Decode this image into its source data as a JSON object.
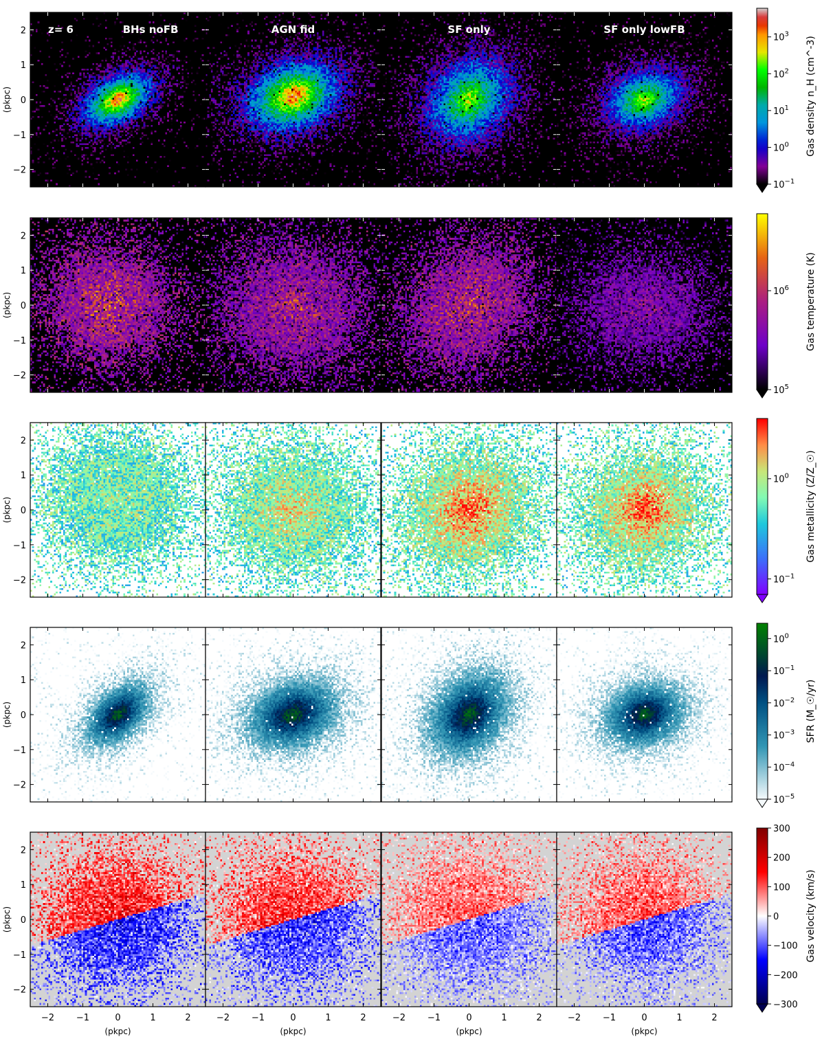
{
  "figure": {
    "redshift_label": "z= 6",
    "columns": [
      "BHs noFB",
      "AGN fid",
      "SF only",
      "SF only lowFB"
    ],
    "axis_label": "(pkpc)"
  },
  "chart_data": [
    {
      "type": "heatmap",
      "quantity": "gas_density",
      "colorbar_label": "Gas density n_H (cm^-3)",
      "colormap": "nipy_spectral",
      "background": "#000000",
      "scale": "log",
      "range": [
        0.1,
        6000
      ],
      "colorbar_ticks": [
        {
          "value": 0.1,
          "base": "10",
          "exp": "−1"
        },
        {
          "value": 1,
          "base": "10",
          "exp": "0"
        },
        {
          "value": 10,
          "base": "10",
          "exp": "1"
        },
        {
          "value": 100,
          "base": "10",
          "exp": "2"
        },
        {
          "value": 1000,
          "base": "10",
          "exp": "3"
        }
      ],
      "ylabel": "(pkpc)",
      "ylim": [
        -2.5,
        2.5
      ],
      "yticks": [
        -2,
        -1,
        0,
        1,
        2
      ],
      "panels": [
        {
          "column": "BHs noFB",
          "center": [
            0,
            0
          ],
          "radius": 1.5,
          "angle": 30,
          "aspect": 0.6,
          "peak": 3000,
          "noise": 0.45
        },
        {
          "column": "AGN fid",
          "center": [
            0,
            0.1
          ],
          "radius": 1.9,
          "angle": 20,
          "aspect": 0.7,
          "peak": 3000,
          "noise": 0.5
        },
        {
          "column": "SF only",
          "center": [
            0,
            0
          ],
          "radius": 1.9,
          "angle": 45,
          "aspect": 0.8,
          "peak": 300,
          "noise": 0.5
        },
        {
          "column": "SF only lowFB",
          "center": [
            0,
            0
          ],
          "radius": 1.6,
          "angle": 20,
          "aspect": 0.75,
          "peak": 300,
          "noise": 0.45
        }
      ]
    },
    {
      "type": "heatmap",
      "quantity": "gas_temperature",
      "colorbar_label": "Gas temperature (K)",
      "colormap": "gnuplot",
      "background": "#000000",
      "scale": "log",
      "range": [
        100000,
        6000000
      ],
      "colorbar_ticks": [
        {
          "value": 100000,
          "base": "10",
          "exp": "5"
        },
        {
          "value": 1000000,
          "base": "10",
          "exp": "6"
        }
      ],
      "ylabel": "(pkpc)",
      "ylim": [
        -2.5,
        2.5
      ],
      "yticks": [
        -2,
        -1,
        0,
        1,
        2
      ],
      "panels": [
        {
          "column": "BHs noFB",
          "center": [
            -0.3,
            0
          ],
          "radius": 1.8,
          "angle": 0,
          "aspect": 0.9,
          "peak": 1500000,
          "noise": 0.6
        },
        {
          "column": "AGN fid",
          "center": [
            0,
            -0.1
          ],
          "radius": 2.0,
          "angle": 0,
          "aspect": 0.9,
          "peak": 1000000,
          "noise": 0.6
        },
        {
          "column": "SF only",
          "center": [
            0,
            0
          ],
          "radius": 2.0,
          "angle": 45,
          "aspect": 0.8,
          "peak": 1200000,
          "noise": 0.6
        },
        {
          "column": "SF only lowFB",
          "center": [
            0,
            -0.1
          ],
          "radius": 1.8,
          "angle": 0,
          "aspect": 0.8,
          "peak": 500000,
          "noise": 0.55
        }
      ]
    },
    {
      "type": "heatmap",
      "quantity": "gas_metallicity",
      "colorbar_label": "Gas metallicity (Z/Z_☉)",
      "colormap": "rainbow",
      "background": "#ffffff",
      "scale": "log",
      "range": [
        0.07,
        4
      ],
      "colorbar_ticks": [
        {
          "value": 0.1,
          "base": "10",
          "exp": "−1"
        },
        {
          "value": 1,
          "base": "10",
          "exp": "0"
        }
      ],
      "ylabel": "(pkpc)",
      "ylim": [
        -2.5,
        2.5
      ],
      "yticks": [
        -2,
        -1,
        0,
        1,
        2
      ],
      "panels": [
        {
          "column": "BHs noFB",
          "center": [
            0,
            0.3
          ],
          "radius": 2.0,
          "angle": 0,
          "aspect": 0.9,
          "peak": 0.8,
          "noise": 0.5
        },
        {
          "column": "AGN fid",
          "center": [
            0,
            0
          ],
          "radius": 2.0,
          "angle": 0,
          "aspect": 0.9,
          "peak": 1.3,
          "noise": 0.5
        },
        {
          "column": "SF only",
          "center": [
            0,
            0
          ],
          "radius": 2.0,
          "angle": 30,
          "aspect": 0.9,
          "peak": 3.0,
          "noise": 0.5
        },
        {
          "column": "SF only lowFB",
          "center": [
            0,
            0
          ],
          "radius": 1.9,
          "angle": 20,
          "aspect": 0.9,
          "peak": 3.0,
          "noise": 0.5
        }
      ]
    },
    {
      "type": "heatmap",
      "quantity": "sfr",
      "colorbar_label": "SFR (M_☉/yr)",
      "colormap": "ocean_r",
      "background": "#ffffff",
      "scale": "log",
      "range": [
        1e-05,
        3
      ],
      "colorbar_ticks": [
        {
          "value": 1e-05,
          "base": "10",
          "exp": "−5"
        },
        {
          "value": 0.0001,
          "base": "10",
          "exp": "−4"
        },
        {
          "value": 0.001,
          "base": "10",
          "exp": "−3"
        },
        {
          "value": 0.01,
          "base": "10",
          "exp": "−2"
        },
        {
          "value": 0.1,
          "base": "10",
          "exp": "−1"
        },
        {
          "value": 1,
          "base": "10",
          "exp": "0"
        }
      ],
      "ylabel": "(pkpc)",
      "ylim": [
        -2.5,
        2.5
      ],
      "yticks": [
        -2,
        -1,
        0,
        1,
        2
      ],
      "panels": [
        {
          "column": "BHs noFB",
          "center": [
            0,
            0
          ],
          "radius": 1.5,
          "angle": 45,
          "aspect": 0.6,
          "peak": 1.0,
          "noise": 0.5
        },
        {
          "column": "AGN fid",
          "center": [
            0,
            0
          ],
          "radius": 1.8,
          "angle": 20,
          "aspect": 0.7,
          "peak": 1.0,
          "noise": 0.5
        },
        {
          "column": "SF only",
          "center": [
            0,
            0
          ],
          "radius": 1.8,
          "angle": 50,
          "aspect": 0.75,
          "peak": 1.0,
          "noise": 0.5
        },
        {
          "column": "SF only lowFB",
          "center": [
            0,
            0
          ],
          "radius": 1.6,
          "angle": 20,
          "aspect": 0.75,
          "peak": 1.0,
          "noise": 0.45
        }
      ]
    },
    {
      "type": "heatmap",
      "quantity": "gas_velocity",
      "colorbar_label": "Gas velocity (km/s)",
      "colormap": "seismic",
      "background": "#d3d3d3",
      "scale": "linear",
      "range": [
        -300,
        300
      ],
      "colorbar_ticks": [
        {
          "value": -300,
          "label": "−300"
        },
        {
          "value": -200,
          "label": "−200"
        },
        {
          "value": -100,
          "label": "−100"
        },
        {
          "value": 0,
          "label": "0"
        },
        {
          "value": 100,
          "label": "100"
        },
        {
          "value": 200,
          "label": "200"
        },
        {
          "value": 300,
          "label": "300"
        }
      ],
      "ylabel": "(pkpc)",
      "ylim": [
        -2.5,
        2.5
      ],
      "yticks": [
        -2,
        -1,
        0,
        1,
        2
      ],
      "xlabel": "(pkpc)",
      "xlim": [
        -2.5,
        2.5
      ],
      "xticks": [
        -2,
        -1,
        0,
        1,
        2
      ],
      "panels": [
        {
          "column": "BHs noFB",
          "center": [
            0,
            0
          ],
          "radius": 2.0,
          "angle": 0,
          "aspect": 0.9,
          "peak": 180,
          "noise": 0.7
        },
        {
          "column": "AGN fid",
          "center": [
            0,
            0
          ],
          "radius": 2.0,
          "angle": 0,
          "aspect": 0.9,
          "peak": 160,
          "noise": 0.7
        },
        {
          "column": "SF only",
          "center": [
            0,
            0
          ],
          "radius": 2.0,
          "angle": 0,
          "aspect": 0.9,
          "peak": 120,
          "noise": 0.6
        },
        {
          "column": "SF only lowFB",
          "center": [
            0,
            0
          ],
          "radius": 1.9,
          "angle": 0,
          "aspect": 0.9,
          "peak": 130,
          "noise": 0.6
        }
      ]
    }
  ]
}
